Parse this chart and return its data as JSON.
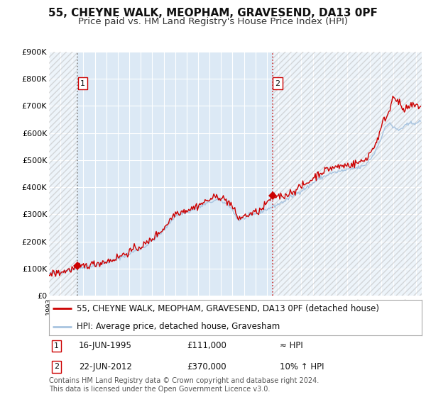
{
  "title1": "55, CHEYNE WALK, MEOPHAM, GRAVESEND, DA13 0PF",
  "title2": "Price paid vs. HM Land Registry's House Price Index (HPI)",
  "legend_line1": "55, CHEYNE WALK, MEOPHAM, GRAVESEND, DA13 0PF (detached house)",
  "legend_line2": "HPI: Average price, detached house, Gravesham",
  "purchase1_date": "16-JUN-1995",
  "purchase1_price": "£111,000",
  "purchase1_rel": "≈ HPI",
  "purchase2_date": "22-JUN-2012",
  "purchase2_price": "£370,000",
  "purchase2_rel": "10% ↑ HPI",
  "footnote": "Contains HM Land Registry data © Crown copyright and database right 2024.\nThis data is licensed under the Open Government Licence v3.0.",
  "hpi_color": "#a8c4e0",
  "price_color": "#cc0000",
  "plot_bg": "#dce9f5",
  "grid_color": "#ffffff",
  "vline_color": "#cc3333",
  "marker_color": "#cc0000",
  "ylim": [
    0,
    900000
  ],
  "xlim_start": 1993.0,
  "xlim_end": 2025.5,
  "purchase1_x": 1995.46,
  "purchase2_x": 2012.47,
  "title_fontsize": 11,
  "subtitle_fontsize": 9.5,
  "axis_fontsize": 8,
  "legend_fontsize": 8.5,
  "footnote_fontsize": 7
}
